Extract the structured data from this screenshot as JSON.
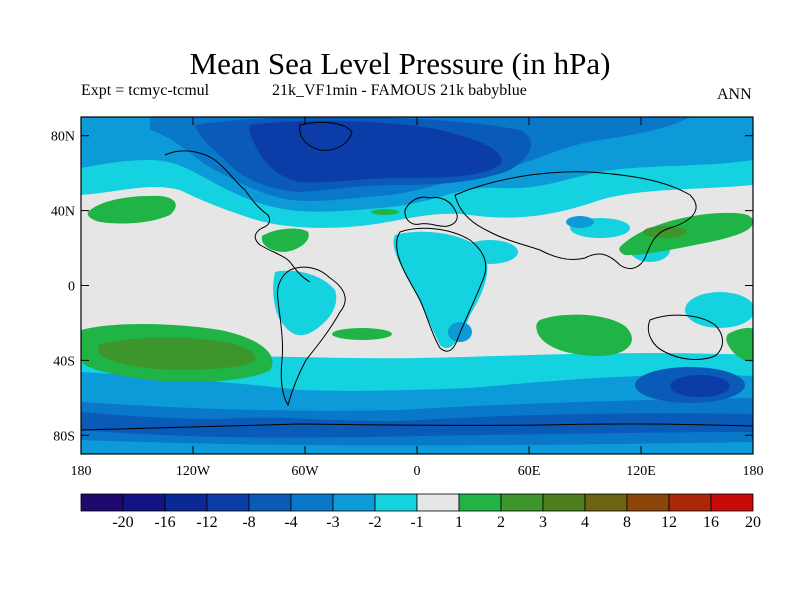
{
  "header": {
    "title": "Mean Sea Level Pressure (in hPa)",
    "expt": "Expt = tcmyc-tcmul",
    "subtitle": "21k_VF1min - FAMOUS 21k babyblue",
    "season": "ANN"
  },
  "map": {
    "lon_range": [
      -180,
      180
    ],
    "lat_range": [
      -90,
      90
    ],
    "background_color": "#e6e6e6",
    "lat_ticks": [
      {
        "value": 80,
        "label": "80N"
      },
      {
        "value": 40,
        "label": "40N"
      },
      {
        "value": 0,
        "label": "0"
      },
      {
        "value": -40,
        "label": "40S"
      },
      {
        "value": -80,
        "label": "80S"
      }
    ],
    "lon_ticks": [
      {
        "value": -180,
        "label": "180"
      },
      {
        "value": -120,
        "label": "120W"
      },
      {
        "value": -60,
        "label": "60W"
      },
      {
        "value": 0,
        "label": "0"
      },
      {
        "value": 60,
        "label": "60E"
      },
      {
        "value": 120,
        "label": "120E"
      },
      {
        "value": 180,
        "label": "180"
      }
    ]
  },
  "colorbar": {
    "colors": [
      "#1e0a6e",
      "#121483",
      "#0a2896",
      "#0c3ca8",
      "#0a5ab8",
      "#0a78c8",
      "#0c9ad8",
      "#14d2e0",
      "#e6e6e6",
      "#20b447",
      "#3c962b",
      "#4e7d1c",
      "#6c6412",
      "#8c460a",
      "#aa2808",
      "#c80a0a"
    ],
    "labels": [
      "-20",
      "-16",
      "-12",
      "-8",
      "-4",
      "-3",
      "-2",
      "-1",
      "1",
      "2",
      "3",
      "4",
      "8",
      "12",
      "16",
      "20"
    ]
  }
}
